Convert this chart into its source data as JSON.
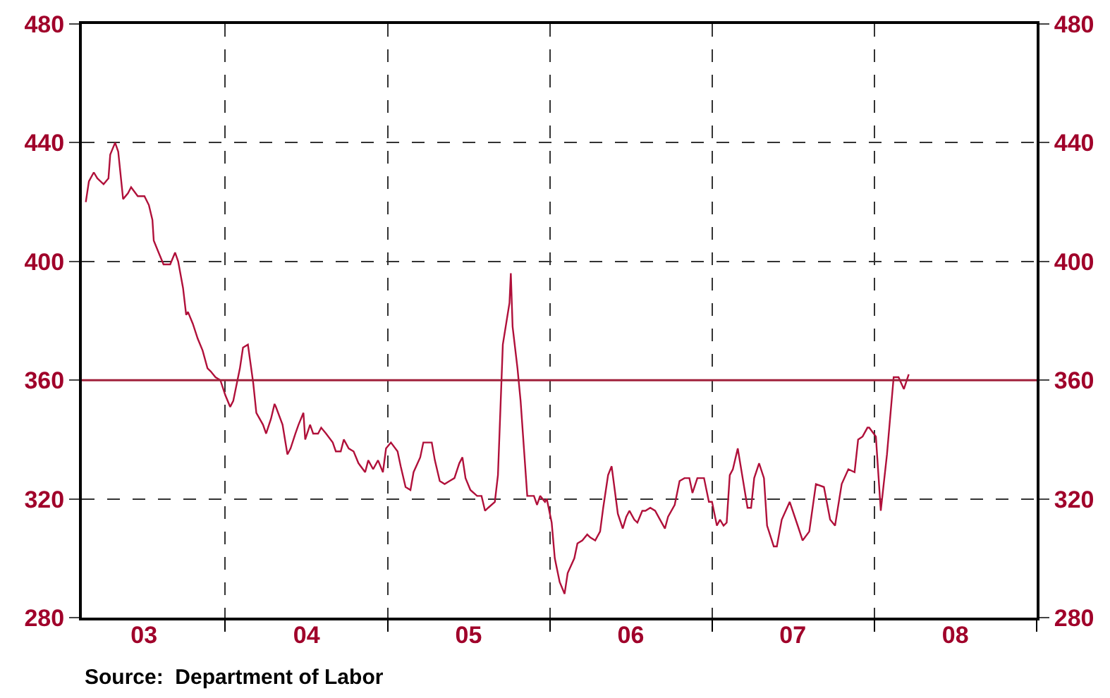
{
  "chart_data": {
    "type": "line",
    "x": [
      "2003-02-21",
      "2003-02-28",
      "2003-03-11",
      "2003-03-19",
      "2003-04-02",
      "2003-04-13",
      "2003-04-17",
      "2003-04-28",
      "2003-05-05",
      "2003-05-16",
      "2003-05-27",
      "2003-06-03",
      "2003-06-18",
      "2003-07-03",
      "2003-07-13",
      "2003-07-21",
      "2003-07-24",
      "2003-08-04",
      "2003-08-15",
      "2003-08-30",
      "2003-09-10",
      "2003-09-17",
      "2003-09-28",
      "2003-10-05",
      "2003-10-09",
      "2003-10-20",
      "2003-10-31",
      "2003-11-11",
      "2003-11-22",
      "2003-11-29",
      "2003-12-10",
      "2003-12-21",
      "2004-01-01",
      "2004-01-12",
      "2004-01-19",
      "2004-02-03",
      "2004-02-10",
      "2004-02-21",
      "2004-03-04",
      "2004-03-11",
      "2004-03-26",
      "2004-04-02",
      "2004-04-13",
      "2004-04-21",
      "2004-04-24",
      "2004-05-09",
      "2004-05-20",
      "2004-05-27",
      "2004-06-07",
      "2004-06-14",
      "2004-06-25",
      "2004-06-29",
      "2004-07-10",
      "2004-07-17",
      "2004-07-28",
      "2004-08-04",
      "2004-08-15",
      "2004-08-30",
      "2004-09-06",
      "2004-09-17",
      "2004-09-24",
      "2004-10-05",
      "2004-10-16",
      "2004-10-27",
      "2004-11-11",
      "2004-11-18",
      "2004-11-29",
      "2004-12-10",
      "2004-12-21",
      "2004-12-28",
      "2005-01-08",
      "2005-01-23",
      "2005-01-30",
      "2005-02-10",
      "2005-02-21",
      "2005-02-28",
      "2005-03-15",
      "2005-03-22",
      "2005-04-10",
      "2005-04-17",
      "2005-04-28",
      "2005-05-09",
      "2005-05-20",
      "2005-05-31",
      "2005-06-11",
      "2005-06-18",
      "2005-06-25",
      "2005-07-06",
      "2005-07-21",
      "2005-07-31",
      "2005-08-08",
      "2005-08-15",
      "2005-08-30",
      "2005-09-06",
      "2005-09-17",
      "2005-10-02",
      "2005-10-05",
      "2005-10-09",
      "2005-10-20",
      "2005-10-27",
      "2005-11-04",
      "2005-11-11",
      "2005-11-26",
      "2005-12-03",
      "2005-12-10",
      "2005-12-21",
      "2005-12-25",
      "2006-01-05",
      "2006-01-12",
      "2006-01-23",
      "2006-02-03",
      "2006-02-10",
      "2006-02-25",
      "2006-03-04",
      "2006-03-15",
      "2006-03-26",
      "2006-04-02",
      "2006-04-13",
      "2006-04-24",
      "2006-05-01",
      "2006-05-12",
      "2006-05-20",
      "2006-05-27",
      "2006-06-03",
      "2006-06-14",
      "2006-06-22",
      "2006-06-29",
      "2006-07-10",
      "2006-07-17",
      "2006-07-28",
      "2006-08-04",
      "2006-08-15",
      "2006-08-26",
      "2006-09-06",
      "2006-09-17",
      "2006-09-24",
      "2006-10-09",
      "2006-10-20",
      "2006-10-31",
      "2006-11-11",
      "2006-11-18",
      "2006-11-29",
      "2006-12-14",
      "2006-12-25",
      "2007-01-01",
      "2007-01-12",
      "2007-01-19",
      "2007-01-27",
      "2007-02-03",
      "2007-02-10",
      "2007-02-17",
      "2007-02-28",
      "2007-03-11",
      "2007-03-22",
      "2007-03-30",
      "2007-04-06",
      "2007-04-17",
      "2007-04-28",
      "2007-05-05",
      "2007-05-20",
      "2007-05-27",
      "2007-06-07",
      "2007-06-25",
      "2007-07-13",
      "2007-07-24",
      "2007-08-08",
      "2007-08-23",
      "2007-09-10",
      "2007-09-24",
      "2007-10-05",
      "2007-10-20",
      "2007-11-04",
      "2007-11-18",
      "2007-11-26",
      "2007-12-06",
      "2007-12-17",
      "2007-12-21",
      "2008-01-05",
      "2008-01-16",
      "2008-01-30",
      "2008-02-14",
      "2008-02-25",
      "2008-03-08",
      "2008-03-19"
    ],
    "series": [
      {
        "color": "#b0103a",
        "values": [
          420,
          427,
          430,
          428,
          426,
          428,
          436,
          440,
          437,
          421,
          423,
          425,
          422,
          422,
          419,
          414,
          407,
          403,
          399,
          399,
          403,
          400,
          391,
          382,
          383,
          379,
          374,
          370,
          364,
          363,
          361,
          360,
          355,
          351,
          353,
          364,
          371,
          372,
          359,
          349,
          345,
          342,
          347,
          352,
          351,
          345,
          335,
          337,
          342,
          345,
          349,
          340,
          345,
          342,
          342,
          344,
          342,
          339,
          336,
          336,
          340,
          337,
          336,
          332,
          329,
          333,
          330,
          333,
          329,
          337,
          339,
          336,
          331,
          324,
          323,
          329,
          334,
          339,
          339,
          333,
          326,
          325,
          326,
          327,
          332,
          334,
          327,
          323,
          321,
          321,
          316,
          317,
          319,
          328,
          372,
          386,
          396,
          378,
          364,
          353,
          336,
          321,
          321,
          318,
          321,
          319,
          320,
          312,
          300,
          292,
          288,
          295,
          300,
          305,
          306,
          308,
          307,
          306,
          309,
          317,
          328,
          331,
          323,
          315,
          310,
          314,
          316,
          313,
          312,
          316,
          316,
          317,
          316,
          313,
          310,
          314,
          318,
          326,
          327,
          327,
          322,
          327,
          327,
          319,
          319,
          311,
          313,
          311,
          312,
          328,
          330,
          337,
          327,
          317,
          317,
          327,
          332,
          327,
          311,
          304,
          304,
          313,
          319,
          311,
          306,
          309,
          325,
          324,
          313,
          311,
          325,
          330,
          329,
          340,
          341,
          344,
          344,
          341,
          316,
          335,
          361,
          361,
          357,
          362
        ]
      }
    ],
    "xlim": [
      "2003-02-12",
      "2009-01-01"
    ],
    "xticks": [
      {
        "value": "2003-07-02",
        "label": "03"
      },
      {
        "value": "2004-01-01",
        "label": null
      },
      {
        "value": "2004-07-02",
        "label": "04"
      },
      {
        "value": "2005-01-01",
        "label": null
      },
      {
        "value": "2005-07-02",
        "label": "05"
      },
      {
        "value": "2006-01-01",
        "label": null
      },
      {
        "value": "2006-07-02",
        "label": "06"
      },
      {
        "value": "2007-01-01",
        "label": null
      },
      {
        "value": "2007-07-02",
        "label": "07"
      },
      {
        "value": "2008-01-01",
        "label": null
      },
      {
        "value": "2008-07-02",
        "label": "08"
      },
      {
        "value": "2009-01-01",
        "label": null
      }
    ],
    "ylim": [
      280,
      480
    ],
    "yticks": [
      280,
      320,
      360,
      400,
      440,
      480
    ],
    "y2lim": [
      280,
      480
    ],
    "y2ticks": [
      280,
      320,
      360,
      400,
      440,
      480
    ],
    "ref_lines": [
      {
        "axis": "y",
        "value": 360,
        "color": "#a0203a"
      }
    ],
    "grid": true,
    "marker": "none",
    "line_style": "solid",
    "annotations": [
      "Source:  Department of Labor"
    ]
  }
}
